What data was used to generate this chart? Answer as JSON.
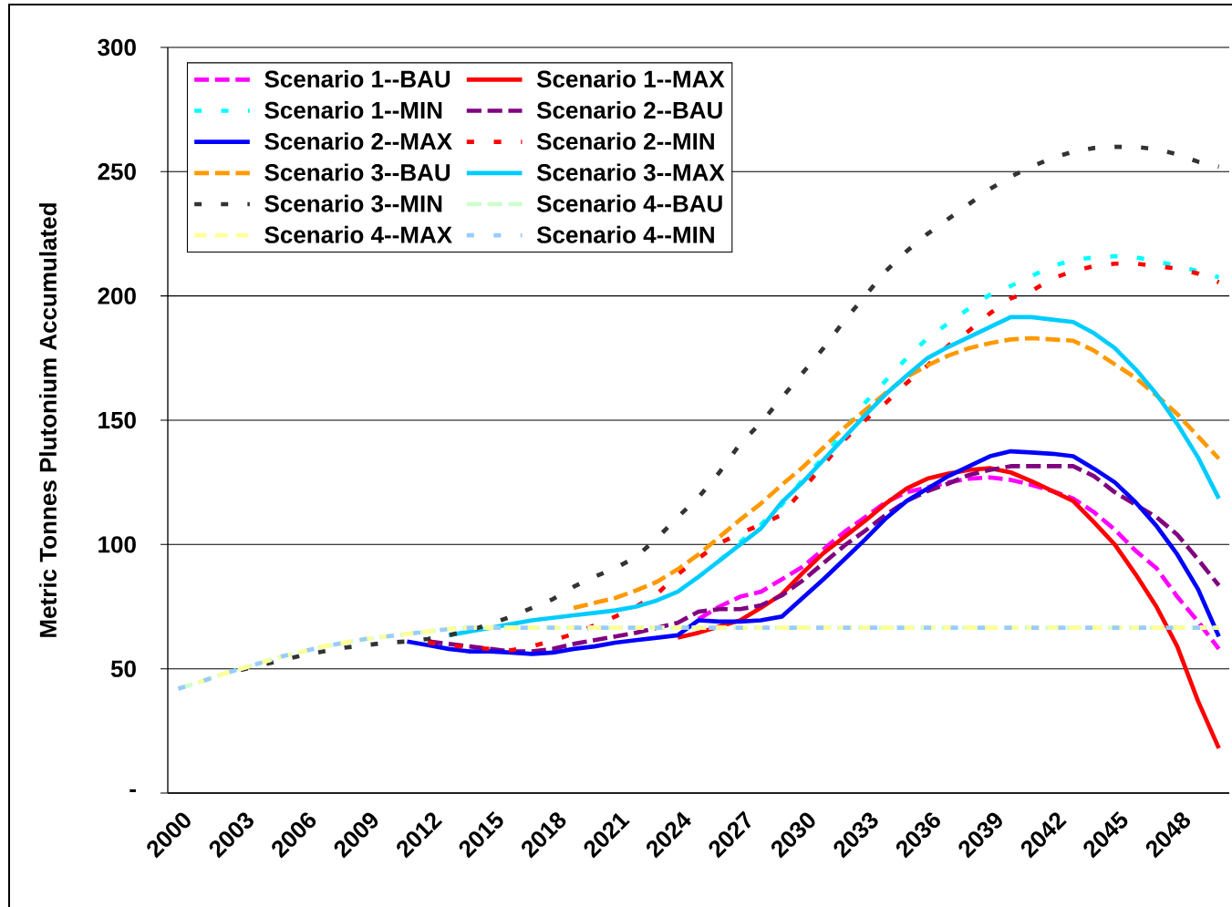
{
  "chart_data": {
    "type": "line",
    "ylabel": "Metric Tonnes Plutonium Accumulated",
    "categories": [
      "2000",
      null,
      null,
      "2003",
      null,
      null,
      "2006",
      null,
      null,
      "2009",
      null,
      null,
      "2012",
      null,
      null,
      "2015",
      null,
      null,
      "2018",
      null,
      null,
      "2021",
      null,
      null,
      "2024",
      null,
      null,
      "2027",
      null,
      null,
      "2030",
      null,
      null,
      "2033",
      null,
      null,
      "2036",
      null,
      null,
      "2039",
      null,
      null,
      "2042",
      null,
      null,
      "2045",
      null,
      null,
      "2048",
      null,
      null
    ],
    "ylim": [
      0,
      300
    ],
    "yticks": [
      {
        "value": 0,
        "label": "-"
      },
      50,
      100,
      150,
      200,
      250,
      300
    ],
    "grid": "y",
    "legend": "top left",
    "series": [
      {
        "name": "Scenario 1--BAU",
        "color": "#ff00ff",
        "line_style": "dashed",
        "values": [
          null,
          null,
          null,
          null,
          null,
          null,
          null,
          null,
          null,
          null,
          null,
          null,
          null,
          null,
          null,
          null,
          null,
          null,
          null,
          null,
          null,
          null,
          null,
          null,
          null,
          70,
          75,
          79,
          81,
          86,
          91,
          98,
          105,
          111,
          117,
          121,
          123,
          125,
          126.5,
          127,
          126,
          124,
          121.5,
          118.5,
          113,
          106,
          97.5,
          90.5,
          79,
          69,
          58
        ]
      },
      {
        "name": "Scenario 1--MAX",
        "color": "#ff0000",
        "line_style": "solid",
        "values": [
          null,
          null,
          null,
          null,
          null,
          null,
          null,
          null,
          null,
          null,
          null,
          null,
          null,
          null,
          null,
          null,
          null,
          null,
          null,
          null,
          null,
          null,
          null,
          null,
          62.5,
          64.5,
          67,
          69.5,
          74.5,
          80,
          88.5,
          96.5,
          103,
          109.5,
          116.5,
          122.5,
          126.5,
          128.5,
          130,
          130.7,
          129,
          125.5,
          121.5,
          117.5,
          109,
          100,
          88,
          75,
          59,
          37,
          18
        ]
      },
      {
        "name": "Scenario 1--MIN",
        "color": "#00ffff",
        "line_style": "dashed",
        "values": [
          null,
          null,
          null,
          null,
          null,
          null,
          null,
          null,
          null,
          null,
          null,
          null,
          null,
          null,
          null,
          null,
          null,
          null,
          null,
          null,
          null,
          null,
          null,
          null,
          null,
          87,
          93.5,
          101,
          108,
          116,
          126,
          135,
          146,
          157,
          166,
          175,
          183,
          189,
          195,
          200.5,
          204,
          208,
          212,
          214.5,
          215.5,
          216,
          215.5,
          214,
          212,
          210,
          207.5
        ]
      },
      {
        "name": "Scenario 2--BAU",
        "color": "#800080",
        "line_style": "dashed",
        "values": [
          null,
          null,
          null,
          null,
          null,
          null,
          null,
          null,
          null,
          null,
          null,
          null,
          61,
          60,
          59,
          58,
          57,
          57,
          58,
          60,
          61.5,
          63,
          64.5,
          66.5,
          68.5,
          73,
          74,
          74,
          75.5,
          79.5,
          85.5,
          92.5,
          99.5,
          105.5,
          112,
          117.5,
          121.5,
          124.5,
          128,
          130,
          131.5,
          131.5,
          131.5,
          131.5,
          127.5,
          121,
          116,
          111,
          104,
          94,
          83.5
        ]
      },
      {
        "name": "Scenario 2--MAX",
        "color": "#0000ff",
        "line_style": "solid",
        "values": [
          null,
          null,
          null,
          null,
          null,
          null,
          null,
          null,
          null,
          null,
          null,
          61,
          59.5,
          58,
          57,
          57,
          56.5,
          56,
          56.5,
          58,
          59,
          60.5,
          61.5,
          62.5,
          63.5,
          69.5,
          69,
          69,
          69.5,
          71,
          78.5,
          86,
          94,
          102,
          110.5,
          117.5,
          122.5,
          127.5,
          131.5,
          135.5,
          137.5,
          137,
          136.5,
          135.5,
          130.5,
          125,
          117,
          107.5,
          96,
          82,
          63
        ]
      },
      {
        "name": "Scenario 2--MIN",
        "color": "#ff0000",
        "line_style": "dashed",
        "values": [
          null,
          null,
          null,
          null,
          null,
          null,
          null,
          null,
          null,
          null,
          null,
          null,
          60.5,
          59.5,
          58.5,
          58,
          57.5,
          59,
          61.5,
          64,
          67.5,
          71,
          75,
          80,
          88,
          94.5,
          100.5,
          104.5,
          108,
          112,
          122,
          132,
          142,
          150,
          157,
          165,
          172,
          180,
          186,
          193,
          199,
          202,
          207,
          210,
          212,
          213,
          213,
          212,
          211,
          209,
          205.5
        ]
      },
      {
        "name": "Scenario 3--BAU",
        "color": "#ff9900",
        "line_style": "dashed",
        "values": [
          null,
          null,
          null,
          null,
          null,
          null,
          null,
          null,
          null,
          null,
          null,
          null,
          null,
          null,
          null,
          null,
          null,
          null,
          null,
          74.5,
          76.5,
          78.5,
          81.5,
          85,
          90,
          96,
          103,
          110,
          116.5,
          124,
          131,
          139,
          147,
          154,
          161,
          167.5,
          172,
          176,
          179,
          181,
          182.5,
          183,
          182.5,
          182,
          178,
          172.5,
          167,
          160,
          152.5,
          143.5,
          134.5
        ]
      },
      {
        "name": "Scenario 3--MAX",
        "color": "#00ccff",
        "line_style": "solid",
        "values": [
          null,
          null,
          null,
          null,
          null,
          null,
          null,
          null,
          null,
          null,
          null,
          null,
          null,
          63.5,
          65,
          66.5,
          68,
          69.5,
          70.5,
          71.5,
          72.5,
          73.5,
          75,
          77.5,
          81,
          87,
          93.5,
          100,
          106.5,
          117,
          125,
          134,
          143,
          152,
          160.5,
          168,
          175,
          179.5,
          183.5,
          187.5,
          191.5,
          191.5,
          190.5,
          189.5,
          185,
          179,
          170.5,
          160.5,
          148.5,
          135,
          118.5
        ]
      },
      {
        "name": "Scenario 3--MIN",
        "color": "#333333",
        "line_style": "dashed",
        "values": [
          null,
          null,
          null,
          49.5,
          51.5,
          53.5,
          55.5,
          57,
          58.5,
          59.5,
          60.5,
          61,
          62,
          63.5,
          65.5,
          68,
          71,
          74.5,
          78,
          83,
          87,
          90.5,
          95,
          102.5,
          111,
          119,
          129,
          140.5,
          149,
          159,
          169,
          179,
          190,
          200,
          210,
          218,
          225,
          231,
          237,
          243,
          248,
          252,
          255.5,
          258,
          259.5,
          260,
          260,
          259,
          257,
          254,
          252
        ]
      },
      {
        "name": "Scenario 4--BAU",
        "color": "#ccffcc",
        "line_style": "dashed",
        "values": [
          42,
          44.5,
          47.5,
          50,
          52.5,
          55,
          57,
          59,
          60.5,
          62,
          63,
          64,
          65,
          66,
          66.5,
          66.5,
          66.5,
          66.5,
          66.5,
          66.5,
          66.5,
          66.5,
          66.5,
          66.5,
          66.5,
          66.5,
          66.5,
          66.5,
          66.5,
          66.5,
          66.5,
          66.5,
          66.5,
          66.5,
          66.5,
          66.5,
          66.5,
          66.5,
          66.5,
          66.5,
          66.5,
          66.5,
          66.5,
          66.5,
          66.5,
          66.5,
          66.5,
          66.5,
          66.5,
          66.5,
          66.5
        ]
      },
      {
        "name": "Scenario 4--MAX",
        "color": "#ffff99",
        "line_style": "dashed",
        "values": [
          null,
          44.5,
          47.5,
          50,
          52.5,
          55,
          57,
          59,
          60.5,
          62,
          63,
          64,
          65,
          66,
          66.5,
          66.5,
          66.5,
          66.5,
          66.5,
          66.5,
          66.5,
          66.5,
          66.5,
          66.5,
          66.5,
          66.5,
          66.5,
          66.5,
          66.5,
          66.5,
          66.5,
          66.5,
          66.5,
          66.5,
          66.5,
          66.5,
          66.5,
          66.5,
          66.5,
          66.5,
          66.5,
          66.5,
          66.5,
          66.5,
          66.5,
          66.5,
          66.5,
          66.5,
          66.5,
          66.5,
          66.5
        ]
      },
      {
        "name": "Scenario 4--MIN",
        "color": "#99ccff",
        "line_style": "dashed",
        "values": [
          42,
          44.5,
          47.5,
          50,
          52.5,
          55,
          57,
          59,
          60.5,
          62,
          63,
          64,
          65,
          66,
          66.5,
          66.5,
          66.5,
          66.5,
          66.5,
          66.5,
          66.5,
          66.5,
          66.5,
          66.5,
          66.5,
          66.5,
          66.5,
          66.5,
          66.5,
          66.5,
          66.5,
          66.5,
          66.5,
          66.5,
          66.5,
          66.5,
          66.5,
          66.5,
          66.5,
          66.5,
          66.5,
          66.5,
          66.5,
          66.5,
          66.5,
          66.5,
          66.5,
          66.5,
          66.5,
          66.5,
          66.5
        ]
      }
    ]
  }
}
